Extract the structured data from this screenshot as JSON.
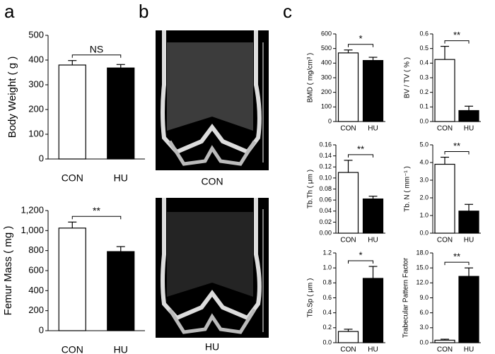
{
  "panels": [
    "a",
    "b",
    "c"
  ],
  "images": [
    "CON",
    "HU"
  ],
  "chart_data": [
    {
      "type": "bar",
      "y_label": "Body Weight ( g )",
      "categories": [
        "CON",
        "HU"
      ],
      "values": [
        380,
        368
      ],
      "errors": [
        18,
        14
      ],
      "colors": [
        "#ffffff",
        "#000000"
      ],
      "ylim": [
        0,
        500
      ],
      "yticks": [
        0,
        100,
        200,
        300,
        400,
        500
      ],
      "annotation": "NS"
    },
    {
      "type": "bar",
      "y_label": "Femur Mass ( mg )",
      "categories": [
        "CON",
        "HU"
      ],
      "values": [
        1025,
        790
      ],
      "errors": [
        60,
        50
      ],
      "colors": [
        "#ffffff",
        "#000000"
      ],
      "ylim": [
        0,
        1200
      ],
      "yticks": [
        0,
        200,
        400,
        600,
        800,
        {
          "value": 1000,
          "label": "1,000"
        },
        {
          "value": 1200,
          "label": "1,200"
        }
      ],
      "annotation": "**"
    },
    {
      "type": "bar",
      "y_label": "BMD ( mg/cm³ )",
      "categories": [
        "CON",
        "HU"
      ],
      "values": [
        470,
        418
      ],
      "errors": [
        20,
        22
      ],
      "colors": [
        "#ffffff",
        "#000000"
      ],
      "ylim": [
        0,
        600
      ],
      "yticks": [
        0,
        100,
        200,
        300,
        400,
        500,
        600
      ],
      "annotation": "*"
    },
    {
      "type": "bar",
      "y_label": "BV / TV  ( % )",
      "categories": [
        "CON",
        "HU"
      ],
      "values": [
        0.425,
        0.075
      ],
      "errors": [
        0.09,
        0.03
      ],
      "colors": [
        "#ffffff",
        "#000000"
      ],
      "ylim": [
        0,
        0.6
      ],
      "yticks": [
        {
          "value": 0,
          "label": "0.0"
        },
        0.1,
        0.2,
        0.3,
        0.4,
        0.5,
        0.6
      ],
      "annotation": "**"
    },
    {
      "type": "bar",
      "y_label": "Tb.Th ( μm )",
      "categories": [
        "CON",
        "HU"
      ],
      "values": [
        0.11,
        0.062
      ],
      "errors": [
        0.022,
        0.005
      ],
      "colors": [
        "#ffffff",
        "#000000"
      ],
      "ylim": [
        0,
        0.16
      ],
      "yticks": [
        {
          "value": 0,
          "label": "0.00"
        },
        0.02,
        0.04,
        0.06,
        0.08,
        {
          "value": 0.1,
          "label": "0.10"
        },
        0.12,
        0.14,
        0.16
      ],
      "annotation": "**"
    },
    {
      "type": "bar",
      "y_label": "Tb. N ( mm⁻¹ )",
      "categories": [
        "CON",
        "HU"
      ],
      "values": [
        3.9,
        1.25
      ],
      "errors": [
        0.4,
        0.38
      ],
      "colors": [
        "#ffffff",
        "#000000"
      ],
      "ylim": [
        0,
        5
      ],
      "yticks": [
        {
          "value": 0,
          "label": "0.0"
        },
        {
          "value": 1,
          "label": "1.0"
        },
        {
          "value": 2,
          "label": "2.0"
        },
        {
          "value": 3,
          "label": "3.0"
        },
        {
          "value": 4,
          "label": "4.0"
        },
        {
          "value": 5,
          "label": "5.0"
        }
      ],
      "annotation": "**"
    },
    {
      "type": "bar",
      "y_label": "Tb.Sp ( μm )",
      "categories": [
        "CON",
        "HU"
      ],
      "values": [
        0.15,
        0.86
      ],
      "errors": [
        0.03,
        0.16
      ],
      "colors": [
        "#ffffff",
        "#000000"
      ],
      "ylim": [
        0,
        1.2
      ],
      "yticks": [
        {
          "value": 0,
          "label": "0.0"
        },
        0.2,
        0.4,
        0.6,
        0.8,
        {
          "value": 1,
          "label": "1.0"
        },
        1.2
      ],
      "annotation": "*"
    },
    {
      "type": "bar",
      "y_label": "Trabecular Pattern Factor",
      "categories": [
        "CON",
        "HU"
      ],
      "values": [
        0.5,
        13.3
      ],
      "errors": [
        0.2,
        1.7
      ],
      "colors": [
        "#ffffff",
        "#000000"
      ],
      "ylim": [
        0,
        18
      ],
      "yticks": [
        {
          "value": 0,
          "label": "0.0"
        },
        {
          "value": 3,
          "label": "3.0"
        },
        {
          "value": 6,
          "label": "6.0"
        },
        {
          "value": 9,
          "label": "9.0"
        },
        {
          "value": 12,
          "label": "12.0"
        },
        {
          "value": 15,
          "label": "15.0"
        },
        {
          "value": 18,
          "label": "18.0"
        }
      ],
      "annotation": "**"
    }
  ]
}
